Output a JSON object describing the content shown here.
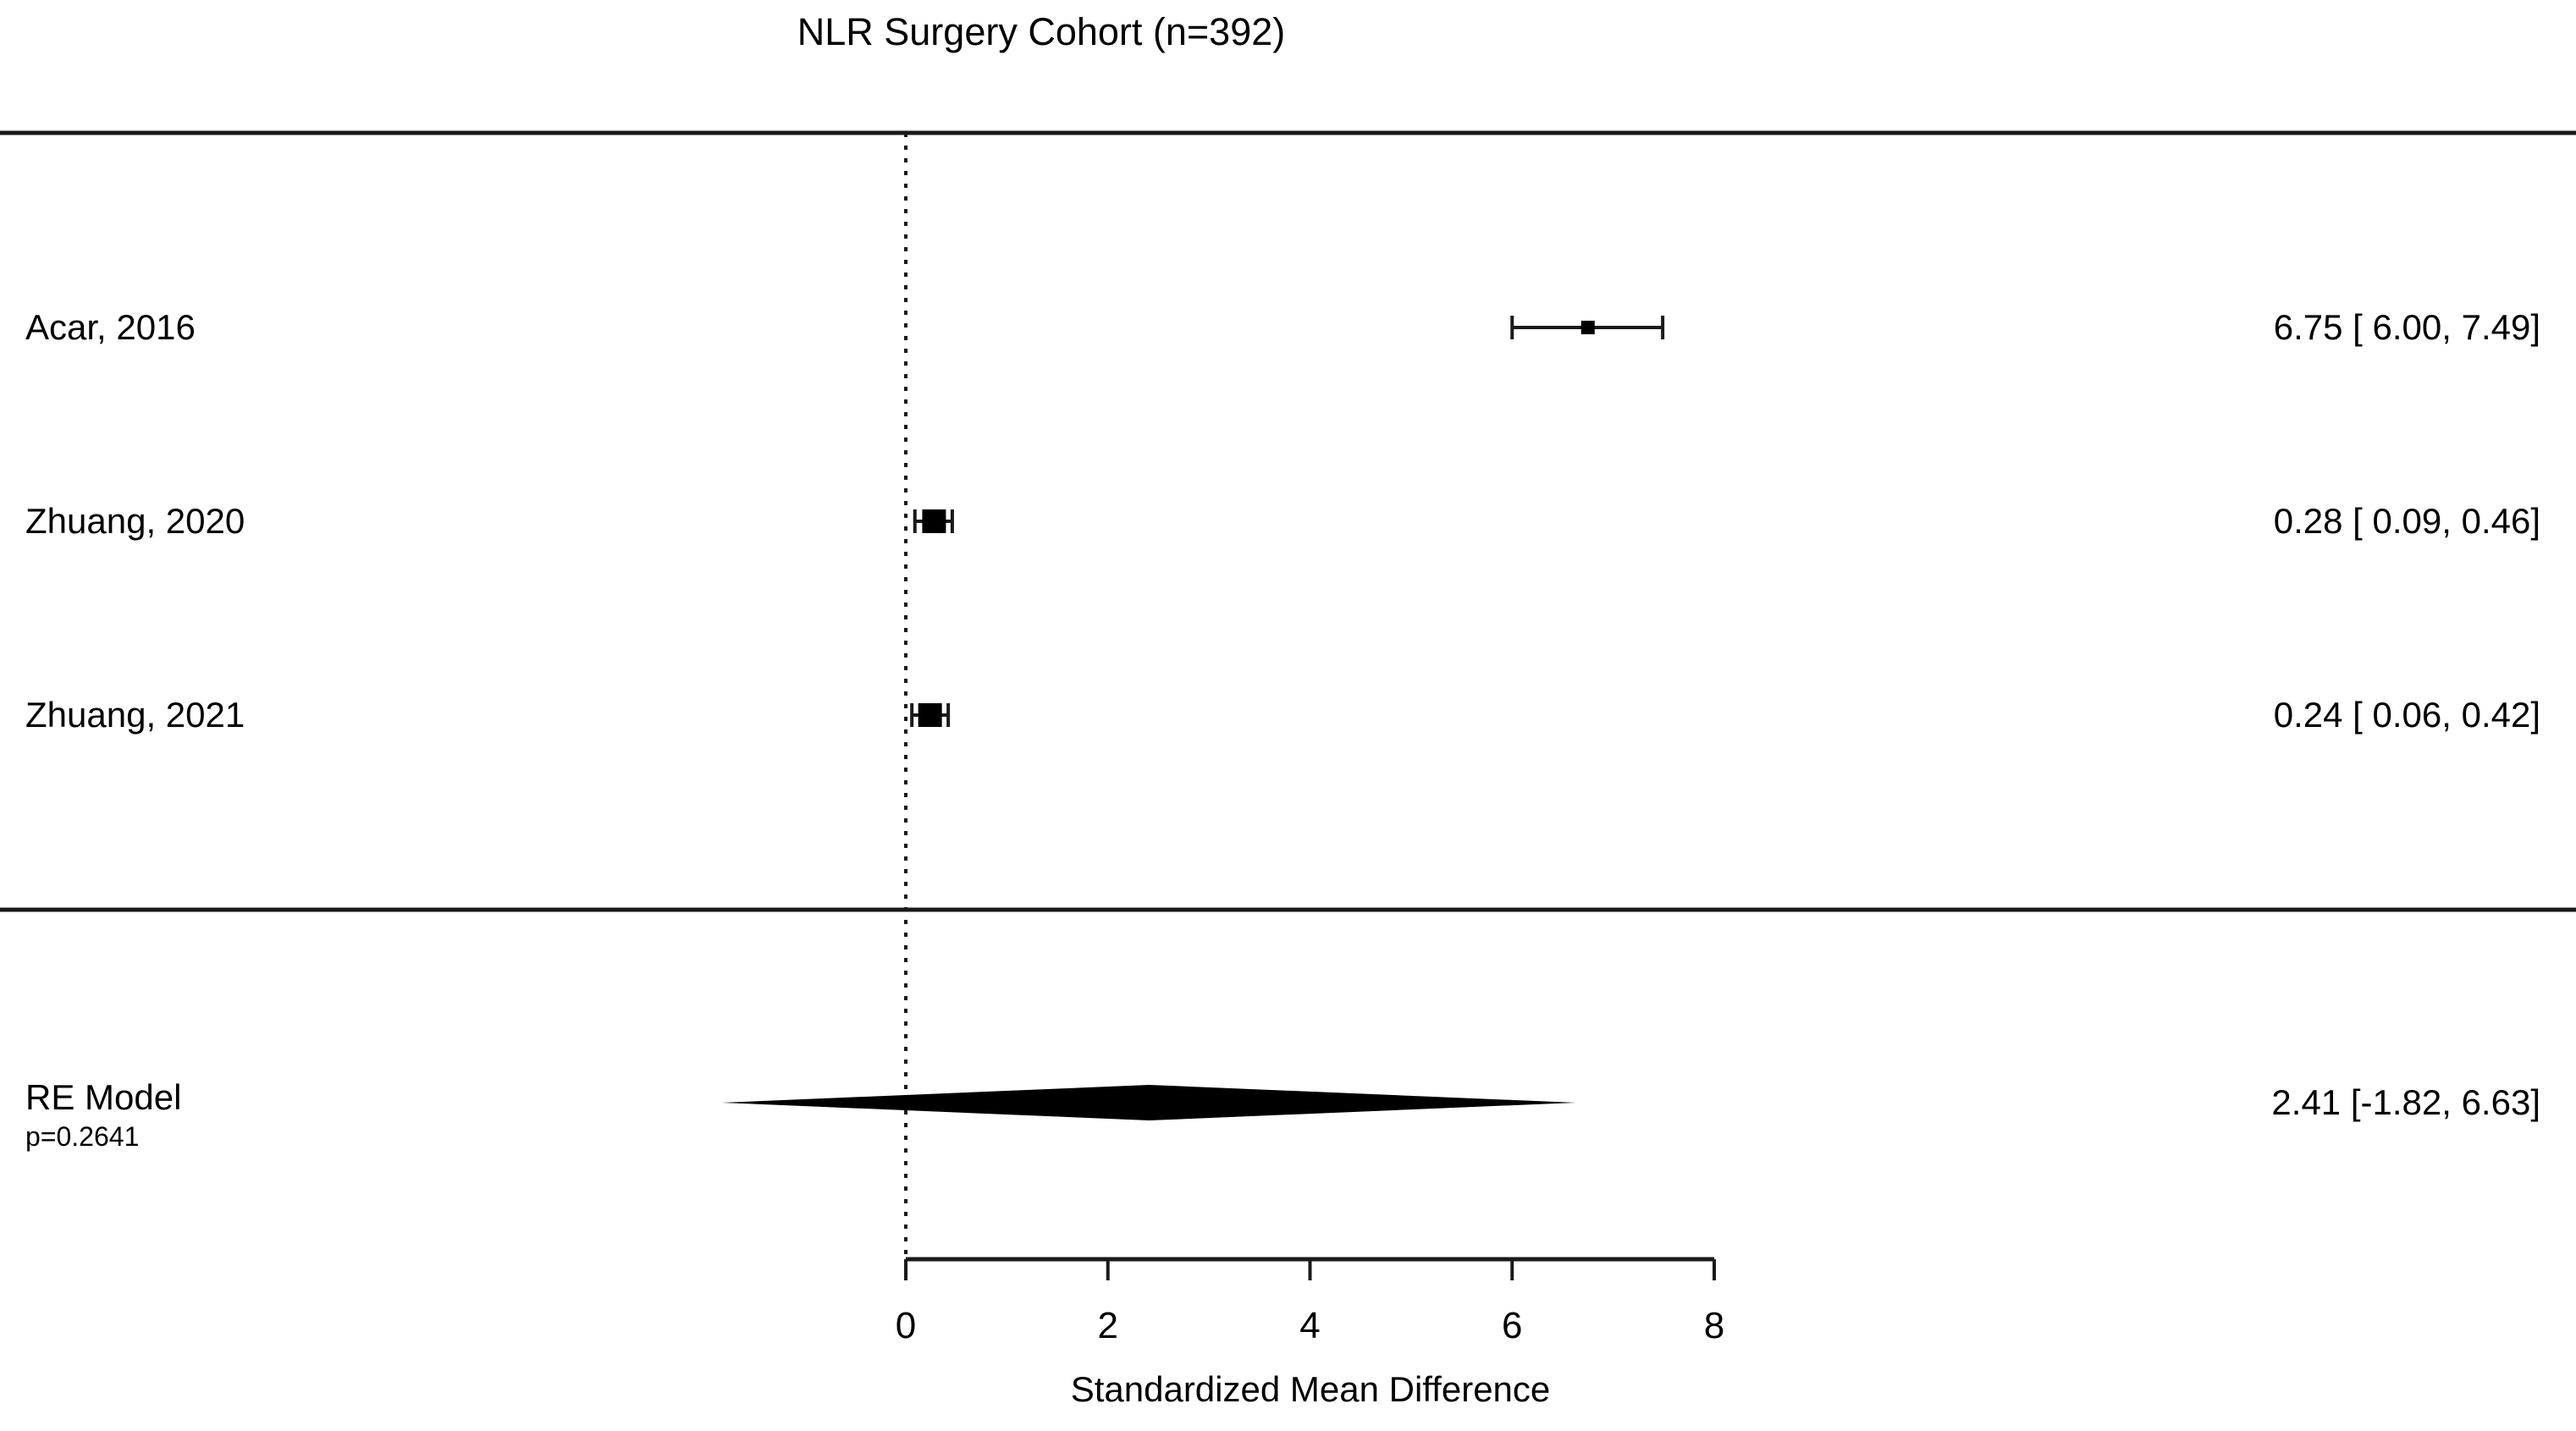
{
  "title": "NLR Surgery Cohort (n=392)",
  "colors": {
    "ink": "#000000",
    "line": "#1a1a1a",
    "background": "#ffffff"
  },
  "chart_data": {
    "type": "forest",
    "title": "NLR Surgery Cohort (n=392)",
    "xlabel": "Standardized Mean Difference",
    "x_ticks": [
      "0",
      "2",
      "4",
      "6",
      "8"
    ],
    "x_tick_values": [
      0,
      2,
      4,
      6,
      8
    ],
    "axis_range": [
      0,
      8
    ],
    "zero_reference_line": 0,
    "studies": [
      {
        "label": "Acar, 2016",
        "estimate": 6.75,
        "ci_low": 6.0,
        "ci_high": 7.49,
        "estimate_text": "6.75 [ 6.00, 7.49]",
        "marker_px": 16
      },
      {
        "label": "Zhuang, 2020",
        "estimate": 0.28,
        "ci_low": 0.09,
        "ci_high": 0.46,
        "estimate_text": "0.28 [ 0.09, 0.46]",
        "marker_px": 28
      },
      {
        "label": "Zhuang, 2021",
        "estimate": 0.24,
        "ci_low": 0.06,
        "ci_high": 0.42,
        "estimate_text": "0.24 [ 0.06, 0.42]",
        "marker_px": 28
      }
    ],
    "summary": {
      "label": "RE Model",
      "p_text": "p=0.2641",
      "estimate": 2.41,
      "ci_low": -1.82,
      "ci_high": 6.63,
      "estimate_text": "2.41 [-1.82, 6.63]"
    }
  }
}
